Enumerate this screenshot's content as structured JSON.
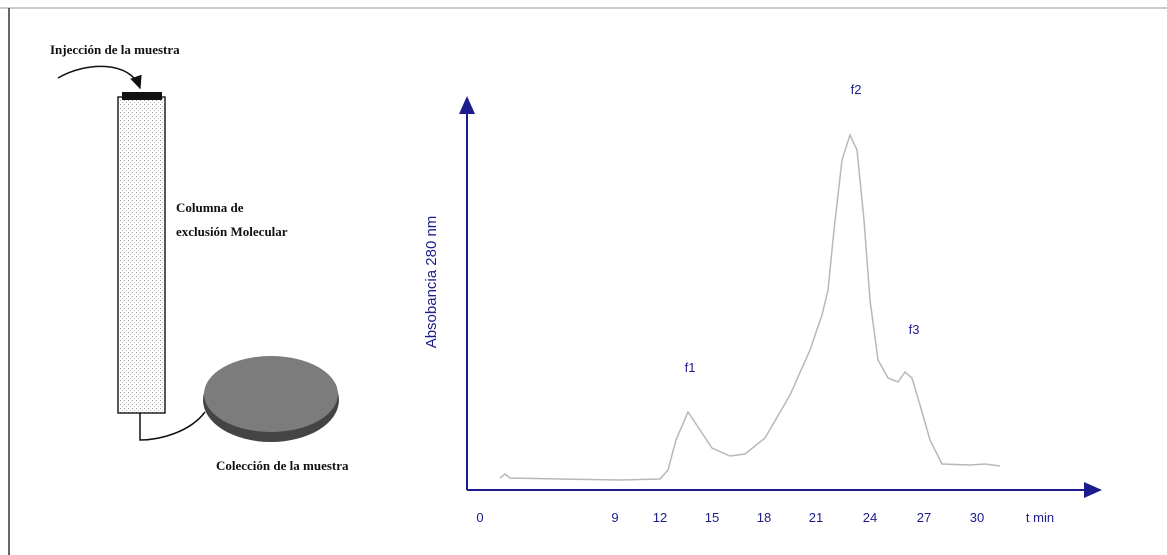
{
  "column_diagram": {
    "injection_label": "Injección de la muestra",
    "column_label": [
      "Columna de",
      "exclusión Molecular"
    ],
    "collection_label": "Colección de la muestra"
  },
  "chromatogram": {
    "y_axis_label": "Absobancia 280 nm",
    "x_ticks": [
      "0",
      "9",
      "12",
      "15",
      "18",
      "21",
      "24",
      "27",
      "30"
    ],
    "x_unit": "t min",
    "peaks": [
      "f1",
      "f2",
      "f3"
    ]
  }
}
